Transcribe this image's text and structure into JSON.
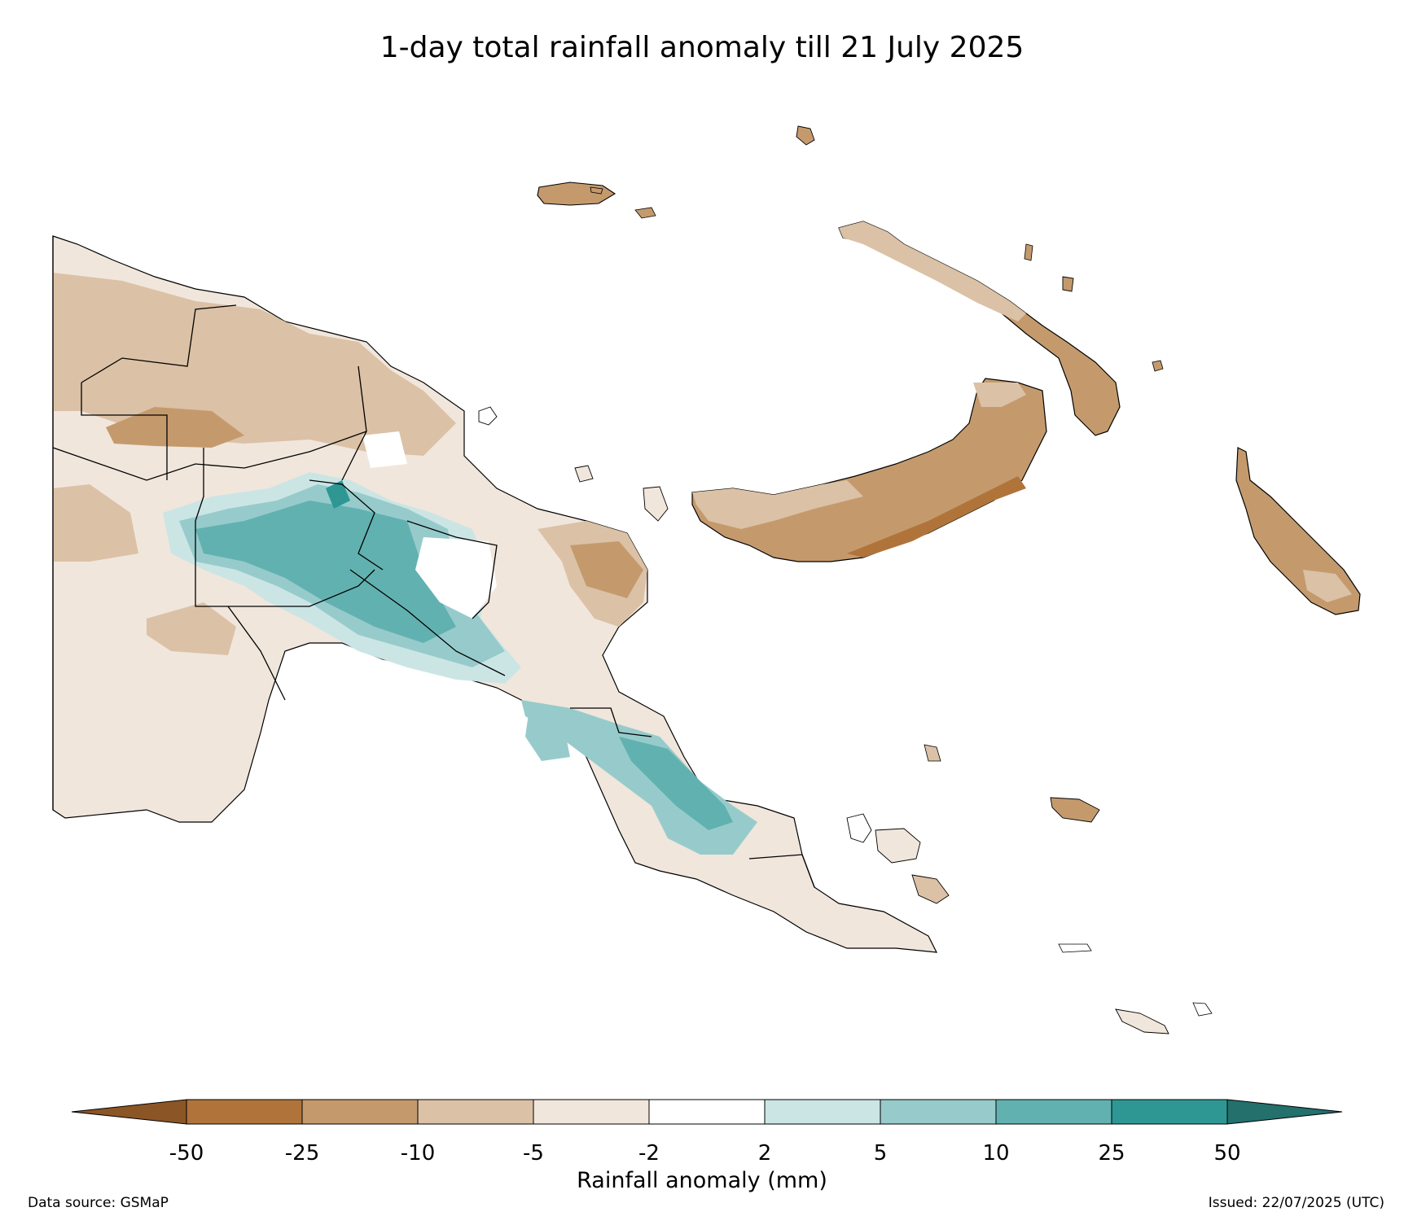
{
  "title": "1-day total rainfall anomaly till 21 July 2025",
  "colorbar": {
    "title": "Rainfall anomaly (mm)",
    "levels": [
      "-50",
      "-25",
      "-10",
      "-5",
      "-2",
      "2",
      "5",
      "10",
      "25",
      "50"
    ],
    "colors": [
      "#8c5525",
      "#b0743b",
      "#c49a6d",
      "#dbc1a6",
      "#f0e6dc",
      "#ffffff",
      "#cbe5e5",
      "#97cbcb",
      "#62b1b1",
      "#2e9794",
      "#23706d"
    ]
  },
  "footer": {
    "source": "Data source: GSMaP",
    "issued": "Issued: 22/07/2025 (UTC)"
  }
}
